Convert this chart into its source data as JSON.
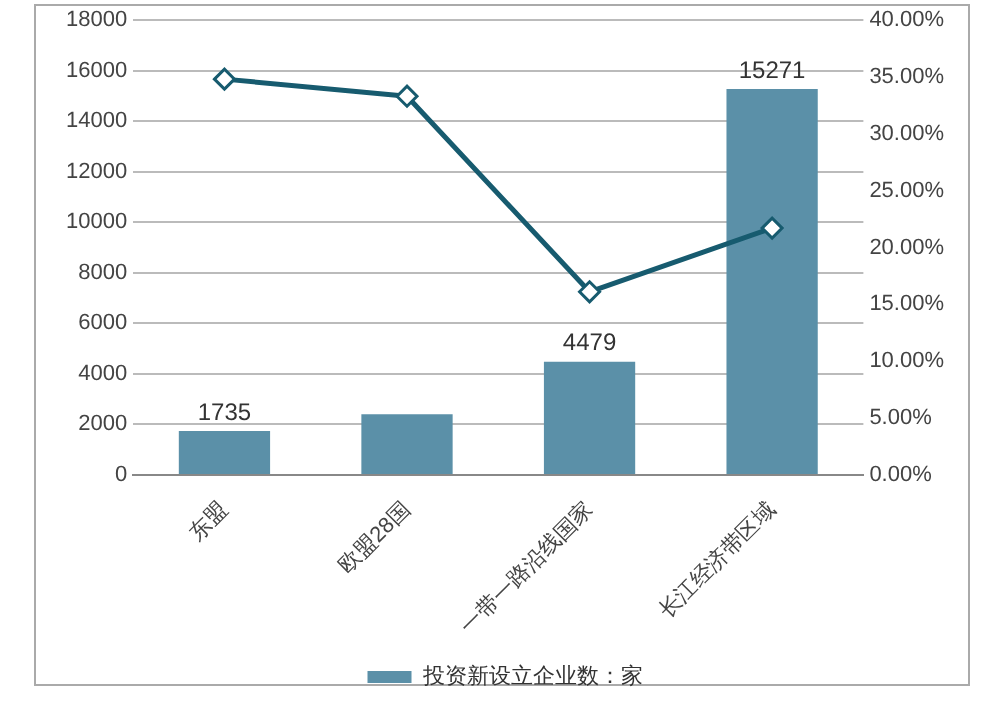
{
  "chart_data": {
    "type": "bar",
    "categories": [
      "东盟",
      "欧盟28国",
      "一带一路沿线国家",
      "长江经济带区域"
    ],
    "series": [
      {
        "name": "投资新设立企业数：家",
        "color": "#5b90a8",
        "values": [
          1735,
          2400,
          4479,
          15271
        ],
        "value_labels": [
          "1735",
          null,
          "4479",
          "15271"
        ]
      },
      {
        "type": "line",
        "axis": "y2",
        "color": "#175b6f",
        "marker": "diamond",
        "values": [
          34.8,
          33.3,
          16.1,
          21.7
        ]
      }
    ],
    "ylim": [
      0,
      18000
    ],
    "yticks": [
      0,
      2000,
      4000,
      6000,
      8000,
      10000,
      12000,
      14000,
      16000,
      18000
    ],
    "y2lim": [
      0,
      40
    ],
    "y2ticks": [
      {
        "value": 0,
        "label": "0.00%"
      },
      {
        "value": 5,
        "label": "5.00%"
      },
      {
        "value": 10,
        "label": "10.00%"
      },
      {
        "value": 15,
        "label": "15.00%"
      },
      {
        "value": 20,
        "label": "20.00%"
      },
      {
        "value": 25,
        "label": "25.00%"
      },
      {
        "value": 30,
        "label": "30.00%"
      },
      {
        "value": 35,
        "label": "35.00%"
      },
      {
        "value": 40,
        "label": "40.00%"
      }
    ],
    "grid": "y",
    "legend": "bottom"
  }
}
